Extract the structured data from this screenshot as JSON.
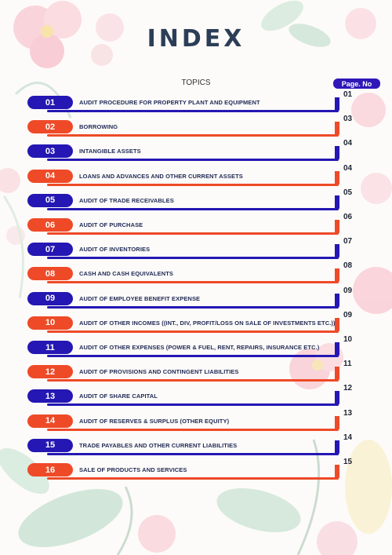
{
  "heading": "INDEX",
  "topics_label": "TOPICS",
  "page_label": "Page. No",
  "rows": [
    {
      "num": "01",
      "topic": "AUDIT PROCEDURE FOR PROPERTY PLANT AND EQUIPMENT",
      "page": "01",
      "color": "blue"
    },
    {
      "num": "02",
      "topic": "BORROWING",
      "page": "03",
      "color": "red"
    },
    {
      "num": "03",
      "topic": "INTANGIBLE ASSETS",
      "page": "04",
      "color": "blue"
    },
    {
      "num": "04",
      "topic": "LOANS AND ADVANCES AND OTHER CURRENT ASSETS",
      "page": "04",
      "color": "red"
    },
    {
      "num": "05",
      "topic": "AUDIT OF TRADE RECEIVABLES",
      "page": "05",
      "color": "blue"
    },
    {
      "num": "06",
      "topic": "AUDIT OF PURCHASE",
      "page": "06",
      "color": "red"
    },
    {
      "num": "07",
      "topic": "AUDIT OF INVENTORIES",
      "page": "07",
      "color": "blue"
    },
    {
      "num": "08",
      "topic": "CASH AND CASH EQUIVALENTS",
      "page": "08",
      "color": "red"
    },
    {
      "num": "09",
      "topic": "AUDIT OF EMPLOYEE BENEFIT EXPENSE",
      "page": "09",
      "color": "blue"
    },
    {
      "num": "10",
      "topic": "AUDIT OF OTHER INCOMES ((INT., DIV, PROFIT/LOSS ON SALE OF INVESTMENTS ETC.))",
      "page": "09",
      "color": "red"
    },
    {
      "num": "11",
      "topic": "AUDIT OF OTHER EXPENSES (POWER & FUEL, RENT, REPAIRS, INSURANCE ETC.)",
      "page": "10",
      "color": "blue"
    },
    {
      "num": "12",
      "topic": "AUDIT OF PROVISIONS AND CONTINGENT LIABILITIES",
      "page": "11",
      "color": "red"
    },
    {
      "num": "13",
      "topic": "AUDIT OF SHARE CAPITAL",
      "page": "12",
      "color": "blue"
    },
    {
      "num": "14",
      "topic": "AUDIT OF RESERVES & SURPLUS (OTHER EQUITY)",
      "page": "13",
      "color": "red"
    },
    {
      "num": "15",
      "topic": "TRADE PAYABLES AND OTHER CURRENT LIABILITIES",
      "page": "14",
      "color": "blue"
    },
    {
      "num": "16",
      "topic": "SALE OF PRODUCTS AND SERVICES",
      "page": "15",
      "color": "red"
    }
  ],
  "colors": {
    "blue": "#2417b3",
    "red": "#ee4a28",
    "heading": "#2c3e57"
  }
}
